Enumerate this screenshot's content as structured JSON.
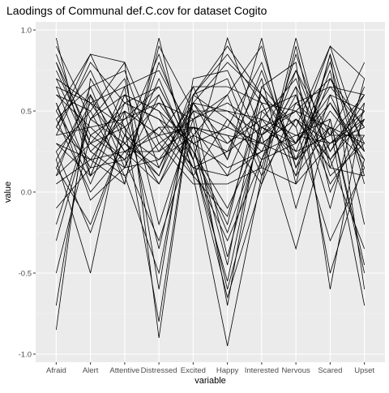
{
  "chart_data": {
    "type": "line",
    "title": "Laodings of Communal def.C.cov for dataset Cogito",
    "xlabel": "variable",
    "ylabel": "value",
    "categories": [
      "Afraid",
      "Alert",
      "Attentive",
      "Distressed",
      "Excited",
      "Happy",
      "Interested",
      "Nervous",
      "Scared",
      "Upset"
    ],
    "ylim": [
      -1.05,
      1.05
    ],
    "yticks": [
      -1.0,
      -0.5,
      0.0,
      0.5,
      1.0
    ],
    "ytick_labels": [
      "-1.0",
      "-0.5",
      "0.0",
      "0.5",
      "1.0"
    ],
    "grid": true,
    "legend": "none",
    "colors": {
      "panel": "#ebebeb",
      "grid_major": "#ffffff",
      "grid_minor": "#f5f5f5",
      "line": "#000000",
      "tick_text": "#4d4d4d",
      "text": "#000000"
    },
    "series": [
      {
        "values": [
          0.95,
          0.1,
          0.6,
          0.25,
          0.55,
          0.3,
          0.45,
          0.2,
          0.4,
          0.3
        ]
      },
      {
        "values": [
          0.85,
          0.3,
          0.4,
          0.6,
          0.2,
          0.95,
          0.35,
          0.5,
          0.2,
          0.45
        ]
      },
      {
        "values": [
          0.7,
          0.55,
          0.25,
          0.05,
          0.4,
          0.1,
          0.6,
          0.3,
          0.55,
          0.25
        ]
      },
      {
        "values": [
          0.55,
          -0.05,
          0.15,
          0.8,
          0.3,
          -0.6,
          0.2,
          0.75,
          0.35,
          0.6
        ]
      },
      {
        "values": [
          0.4,
          0.85,
          0.8,
          -0.9,
          0.6,
          0.85,
          0.55,
          0.1,
          0.85,
          -0.6
        ]
      },
      {
        "values": [
          0.3,
          0.2,
          0.5,
          0.35,
          0.1,
          0.45,
          0.25,
          0.65,
          -0.5,
          0.2
        ]
      },
      {
        "values": [
          0.2,
          0.6,
          0.05,
          0.9,
          0.5,
          -0.4,
          0.4,
          0.3,
          0.9,
          0.7
        ]
      },
      {
        "values": [
          0.15,
          -0.2,
          0.35,
          0.1,
          0.65,
          0.2,
          0.95,
          0.05,
          0.3,
          0.4
        ]
      },
      {
        "values": [
          0.6,
          0.4,
          0.2,
          -0.3,
          0.35,
          0.6,
          0.1,
          0.45,
          0.15,
          0.1
        ]
      },
      {
        "values": [
          0.35,
          0.8,
          0.55,
          0.45,
          0.15,
          0.25,
          0.7,
          -0.1,
          0.6,
          0.5
        ]
      },
      {
        "values": [
          -0.2,
          0.45,
          0.3,
          0.55,
          0.45,
          -0.7,
          0.5,
          0.6,
          0.05,
          0.35
        ]
      },
      {
        "values": [
          0.5,
          0.15,
          0.65,
          -0.6,
          0.7,
          0.75,
          0.3,
          0.2,
          0.75,
          -0.2
        ]
      },
      {
        "values": [
          0.25,
          0.5,
          0.1,
          0.3,
          0.05,
          0.05,
          0.15,
          0.85,
          0.25,
          0.55
        ]
      },
      {
        "values": [
          0.8,
          0.25,
          0.45,
          0.65,
          0.25,
          -0.2,
          0.65,
          0.4,
          -0.3,
          0.15
        ]
      },
      {
        "values": [
          0.1,
          0.65,
          0.75,
          0.15,
          0.55,
          0.5,
          0.35,
          -0.35,
          0.45,
          -0.45
        ]
      },
      {
        "values": [
          0.45,
          0.0,
          0.25,
          0.4,
          0.4,
          0.35,
          0.05,
          0.55,
          0.65,
          0.6
        ]
      },
      {
        "values": [
          -0.5,
          0.35,
          0.2,
          0.7,
          0.2,
          -0.55,
          0.45,
          0.7,
          0.1,
          0.3
        ]
      },
      {
        "values": [
          0.65,
          0.55,
          0.4,
          -0.8,
          0.6,
          0.9,
          0.6,
          0.25,
          0.8,
          0.05
        ]
      },
      {
        "values": [
          0.3,
          0.1,
          0.6,
          0.5,
          0.3,
          0.15,
          0.25,
          0.35,
          0.3,
          0.45
        ]
      },
      {
        "values": [
          -0.85,
          0.7,
          0.35,
          0.2,
          0.5,
          0.4,
          0.8,
          0.15,
          0.5,
          0.25
        ]
      },
      {
        "values": [
          0.75,
          0.3,
          0.15,
          0.6,
          0.15,
          -0.3,
          0.2,
          0.6,
          -0.1,
          0.7
        ]
      },
      {
        "values": [
          0.2,
          -0.5,
          0.5,
          0.35,
          0.65,
          0.65,
          0.55,
          0.1,
          0.4,
          -0.7
        ]
      },
      {
        "values": [
          0.9,
          0.45,
          0.7,
          -0.2,
          0.45,
          0.55,
          0.4,
          0.5,
          0.7,
          0.4
        ]
      },
      {
        "values": [
          0.05,
          0.2,
          0.05,
          0.95,
          0.1,
          -0.95,
          0.1,
          0.95,
          0.15,
          0.65
        ]
      },
      {
        "values": [
          0.4,
          0.75,
          0.3,
          0.1,
          0.55,
          0.2,
          0.75,
          0.2,
          0.55,
          0.2
        ]
      },
      {
        "values": [
          0.55,
          0.05,
          0.55,
          0.45,
          0.3,
          0.4,
          0.3,
          0.45,
          0.2,
          0.5
        ]
      },
      {
        "values": [
          -0.7,
          0.6,
          0.25,
          0.25,
          0.4,
          0.3,
          0.5,
          0.3,
          0.6,
          0.15
        ]
      },
      {
        "values": [
          0.35,
          0.4,
          0.45,
          0.55,
          0.25,
          -0.1,
          0.35,
          0.55,
          0.35,
          0.35
        ]
      },
      {
        "values": [
          0.7,
          0.25,
          0.1,
          -0.5,
          0.6,
          0.7,
          0.15,
          0.05,
          0.85,
          0.1
        ]
      },
      {
        "values": [
          0.15,
          0.55,
          0.65,
          0.75,
          0.35,
          -0.45,
          0.65,
          0.8,
          -0.6,
          0.55
        ]
      },
      {
        "values": [
          0.5,
          0.85,
          0.4,
          0.05,
          0.5,
          0.5,
          0.45,
          0.35,
          0.45,
          -0.5
        ]
      },
      {
        "values": [
          -0.1,
          0.15,
          0.2,
          0.4,
          0.15,
          0.1,
          0.25,
          0.65,
          0.25,
          0.6
        ]
      },
      {
        "values": [
          0.6,
          0.5,
          0.8,
          0.3,
          0.45,
          0.6,
          0.9,
          0.15,
          0.7,
          0.3
        ]
      },
      {
        "values": [
          0.25,
          -0.25,
          0.35,
          0.85,
          0.2,
          -0.65,
          0.05,
          0.9,
          0.0,
          0.45
        ]
      },
      {
        "values": [
          0.8,
          0.35,
          0.5,
          -0.35,
          0.55,
          0.8,
          0.6,
          0.4,
          0.9,
          0.25
        ]
      },
      {
        "values": [
          0.45,
          0.65,
          0.15,
          0.2,
          0.35,
          0.25,
          0.4,
          0.25,
          0.35,
          0.8
        ]
      },
      {
        "values": [
          0.1,
          0.3,
          0.55,
          0.65,
          0.25,
          -0.25,
          0.35,
          0.75,
          0.2,
          -0.35
        ]
      },
      {
        "values": [
          0.65,
          0.1,
          0.3,
          0.15,
          0.6,
          0.45,
          0.2,
          0.3,
          0.65,
          0.4
        ]
      },
      {
        "values": [
          -0.3,
          0.45,
          0.6,
          0.5,
          0.1,
          -0.15,
          0.55,
          0.5,
          0.4,
          0.2
        ]
      },
      {
        "values": [
          0.4,
          0.2,
          0.25,
          0.35,
          0.4,
          0.35,
          0.3,
          0.45,
          0.3,
          0.5
        ]
      }
    ]
  }
}
